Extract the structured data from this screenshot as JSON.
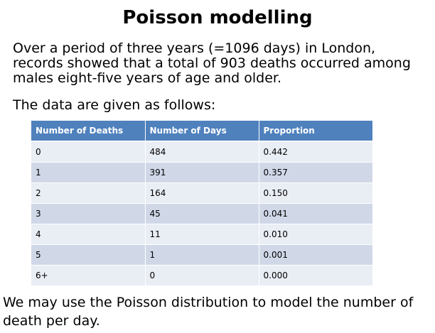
{
  "slide": {
    "title": "Poisson modelling",
    "intro_lines": [
      "Over a period of three years (=1096 days) in London,",
      "records showed that a total of 903 deaths occurred among",
      "males eight-five years of age and older."
    ],
    "lead": "The data are given as follows:",
    "table": {
      "headers": [
        "Number of Deaths",
        "Number of Days",
        "Proportion"
      ],
      "rows": [
        [
          "0",
          "484",
          "0.442"
        ],
        [
          "1",
          "391",
          "0.357"
        ],
        [
          "2",
          "164",
          "0.150"
        ],
        [
          "3",
          "45",
          "0.041"
        ],
        [
          "4",
          "11",
          "0.010"
        ],
        [
          "5",
          "1",
          "0.001"
        ],
        [
          "6+",
          "0",
          "0.000"
        ]
      ]
    },
    "outro": "We may use the Poisson distribution to model the number of death per day.",
    "colors": {
      "header_bg": "#4f81bd",
      "row_light": "#e9edf4",
      "row_dark": "#d0d8e8"
    }
  }
}
